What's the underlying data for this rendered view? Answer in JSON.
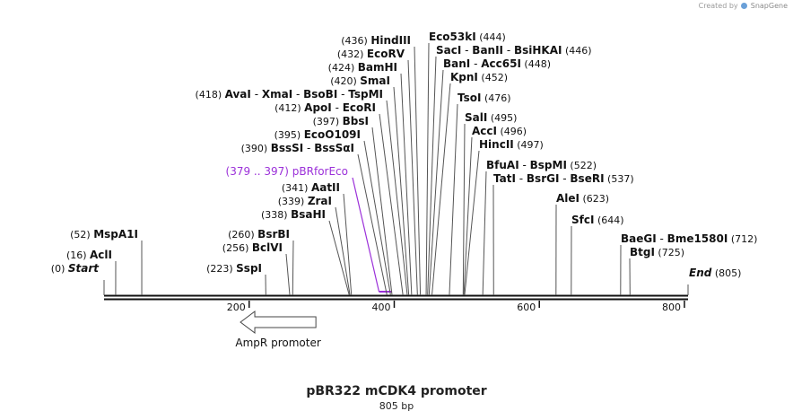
{
  "credit": {
    "text": "Created by",
    "brand": "SnapGene",
    "logo_icon": "snapgene-logo-icon"
  },
  "title": "pBR322 mCDK4 promoter",
  "subtitle": "805 bp",
  "colors": {
    "line": "#111111",
    "primer": "#9b30d9",
    "feature_fill": "#ffffff",
    "feature_stroke": "#444444"
  },
  "sequence": {
    "length": 805,
    "ticks": [
      200,
      400,
      600,
      800
    ],
    "ticks_text": [
      "200",
      "400",
      "600",
      "800"
    ]
  },
  "feature": {
    "name": "AmpR promoter",
    "start": 188,
    "end": 292,
    "direction": "reverse",
    "icon": "arrow-left-icon"
  },
  "primer": {
    "range_text": "(379 .. 397)",
    "name": "pBRforEco",
    "start": 379,
    "end": 397
  },
  "sites": [
    {
      "pos": 436,
      "pos_text": "(436)",
      "names": [
        "HindIII"
      ],
      "pos_side": "left"
    },
    {
      "pos": 432,
      "pos_text": "(432)",
      "names": [
        "EcoRV"
      ],
      "pos_side": "left"
    },
    {
      "pos": 424,
      "pos_text": "(424)",
      "names": [
        "BamHI"
      ],
      "pos_side": "left"
    },
    {
      "pos": 420,
      "pos_text": "(420)",
      "names": [
        "SmaI"
      ],
      "pos_side": "left"
    },
    {
      "pos": 418,
      "pos_text": "(418)",
      "names": [
        "AvaI",
        "XmaI",
        "BsoBI",
        "TspMI"
      ],
      "pos_side": "left"
    },
    {
      "pos": 412,
      "pos_text": "(412)",
      "names": [
        "ApoI",
        "EcoRI"
      ],
      "pos_side": "left"
    },
    {
      "pos": 397,
      "pos_text": "(397)",
      "names": [
        "BbsI"
      ],
      "pos_side": "left"
    },
    {
      "pos": 395,
      "pos_text": "(395)",
      "names": [
        "EcoO109I"
      ],
      "pos_side": "left"
    },
    {
      "pos": 390,
      "pos_text": "(390)",
      "names": [
        "BssSI",
        "BssSαI"
      ],
      "pos_side": "left"
    },
    {
      "pos": 341,
      "pos_text": "(341)",
      "names": [
        "AatII"
      ],
      "pos_side": "left"
    },
    {
      "pos": 339,
      "pos_text": "(339)",
      "names": [
        "ZraI"
      ],
      "pos_side": "left"
    },
    {
      "pos": 338,
      "pos_text": "(338)",
      "names": [
        "BsaHI"
      ],
      "pos_side": "left"
    },
    {
      "pos": 260,
      "pos_text": "(260)",
      "names": [
        "BsrBI"
      ],
      "pos_side": "left"
    },
    {
      "pos": 256,
      "pos_text": "(256)",
      "names": [
        "BclVI"
      ],
      "pos_side": "left"
    },
    {
      "pos": 223,
      "pos_text": "(223)",
      "names": [
        "SspI"
      ],
      "pos_side": "left"
    },
    {
      "pos": 52,
      "pos_text": "(52)",
      "names": [
        "MspA1I"
      ],
      "pos_side": "left"
    },
    {
      "pos": 16,
      "pos_text": "(16)",
      "names": [
        "AclI"
      ],
      "pos_side": "left"
    },
    {
      "pos": 0,
      "pos_text": "(0)",
      "names": [
        "Start"
      ],
      "pos_side": "left",
      "italic": true
    },
    {
      "pos": 444,
      "pos_text": "(444)",
      "names": [
        "Eco53kI"
      ],
      "pos_side": "right"
    },
    {
      "pos": 446,
      "pos_text": "(446)",
      "names": [
        "SacI",
        "BanII",
        "BsiHKAI"
      ],
      "pos_side": "right"
    },
    {
      "pos": 448,
      "pos_text": "(448)",
      "names": [
        "BanI",
        "Acc65I"
      ],
      "pos_side": "right"
    },
    {
      "pos": 452,
      "pos_text": "(452)",
      "names": [
        "KpnI"
      ],
      "pos_side": "right"
    },
    {
      "pos": 476,
      "pos_text": "(476)",
      "names": [
        "TsoI"
      ],
      "pos_side": "right"
    },
    {
      "pos": 495,
      "pos_text": "(495)",
      "names": [
        "SalI"
      ],
      "pos_side": "right"
    },
    {
      "pos": 496,
      "pos_text": "(496)",
      "names": [
        "AccI"
      ],
      "pos_side": "right"
    },
    {
      "pos": 497,
      "pos_text": "(497)",
      "names": [
        "HincII"
      ],
      "pos_side": "right"
    },
    {
      "pos": 522,
      "pos_text": "(522)",
      "names": [
        "BfuAI",
        "BspMI"
      ],
      "pos_side": "right"
    },
    {
      "pos": 537,
      "pos_text": "(537)",
      "names": [
        "TatI",
        "BsrGI",
        "BseRI"
      ],
      "pos_side": "right"
    },
    {
      "pos": 623,
      "pos_text": "(623)",
      "names": [
        "AleI"
      ],
      "pos_side": "right"
    },
    {
      "pos": 644,
      "pos_text": "(644)",
      "names": [
        "SfcI"
      ],
      "pos_side": "right"
    },
    {
      "pos": 712,
      "pos_text": "(712)",
      "names": [
        "BaeGI",
        "Bme1580I"
      ],
      "pos_side": "right"
    },
    {
      "pos": 725,
      "pos_text": "(725)",
      "names": [
        "BtgI"
      ],
      "pos_side": "right"
    },
    {
      "pos": 805,
      "pos_text": "(805)",
      "names": [
        "End"
      ],
      "pos_side": "right",
      "italic": true
    }
  ]
}
